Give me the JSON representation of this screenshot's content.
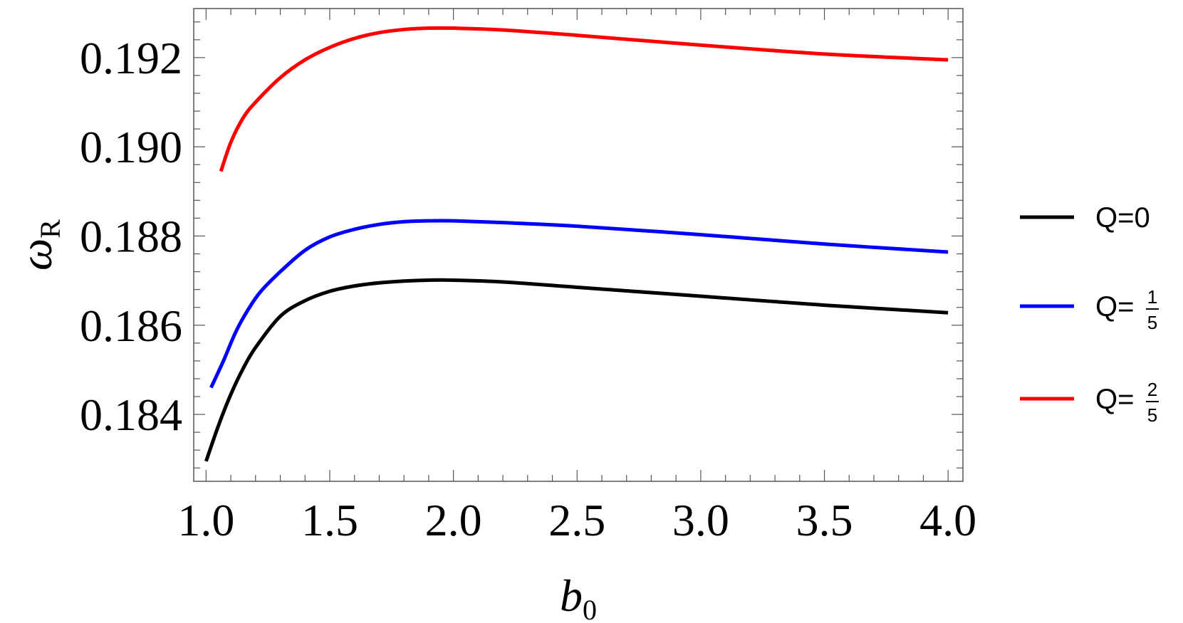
{
  "chart_data": {
    "type": "line",
    "title": "",
    "xlabel": "b",
    "xlabel_sub": "0",
    "ylabel": "ω",
    "ylabel_sub": "R",
    "xlim": [
      0.95,
      4.06
    ],
    "ylim": [
      0.1825,
      0.1931
    ],
    "xticks": [
      1.0,
      1.5,
      2.0,
      2.5,
      3.0,
      3.5,
      4.0
    ],
    "xtick_labels": [
      "1.0",
      "1.5",
      "2.0",
      "2.5",
      "3.0",
      "3.5",
      "4.0"
    ],
    "yticks": [
      0.184,
      0.186,
      0.188,
      0.19,
      0.192
    ],
    "ytick_labels": [
      "0.184",
      "0.186",
      "0.188",
      "0.190",
      "0.192"
    ],
    "grid": false,
    "legend_position": "right",
    "series": [
      {
        "name": "Q=0",
        "legend_prefix": "Q=",
        "legend_value": "0",
        "color": "#000000",
        "x": [
          1.0,
          1.05,
          1.1,
          1.15,
          1.2,
          1.3,
          1.4,
          1.5,
          1.6,
          1.7,
          1.8,
          1.9,
          2.0,
          2.2,
          2.5,
          3.0,
          3.5,
          4.0
        ],
        "y": [
          0.18295,
          0.18375,
          0.18445,
          0.18503,
          0.1855,
          0.1862,
          0.18655,
          0.18676,
          0.18688,
          0.18695,
          0.18699,
          0.18701,
          0.18701,
          0.18697,
          0.18685,
          0.18665,
          0.18645,
          0.18628
        ]
      },
      {
        "name": "Q=1/5",
        "legend_prefix": "Q=",
        "legend_num": "1",
        "legend_den": "5",
        "color": "#0000ff",
        "x": [
          1.02,
          1.07,
          1.12,
          1.17,
          1.22,
          1.3,
          1.4,
          1.5,
          1.6,
          1.7,
          1.8,
          1.9,
          2.0,
          2.2,
          2.5,
          3.0,
          3.5,
          4.0
        ],
        "y": [
          0.1846,
          0.1852,
          0.18585,
          0.18635,
          0.18675,
          0.1872,
          0.18768,
          0.18798,
          0.18815,
          0.18826,
          0.18832,
          0.18834,
          0.18834,
          0.1883,
          0.18822,
          0.18803,
          0.18782,
          0.18764
        ]
      },
      {
        "name": "Q=2/5",
        "legend_prefix": "Q=",
        "legend_num": "2",
        "legend_den": "5",
        "color": "#ff0000",
        "x": [
          1.06,
          1.1,
          1.15,
          1.2,
          1.3,
          1.4,
          1.5,
          1.6,
          1.7,
          1.8,
          1.9,
          2.0,
          2.2,
          2.5,
          3.0,
          3.5,
          4.0
        ],
        "y": [
          0.18945,
          0.1901,
          0.19065,
          0.191,
          0.19155,
          0.19195,
          0.19223,
          0.19243,
          0.19256,
          0.19263,
          0.19266,
          0.19266,
          0.19262,
          0.1925,
          0.19228,
          0.19208,
          0.19195
        ]
      }
    ]
  }
}
